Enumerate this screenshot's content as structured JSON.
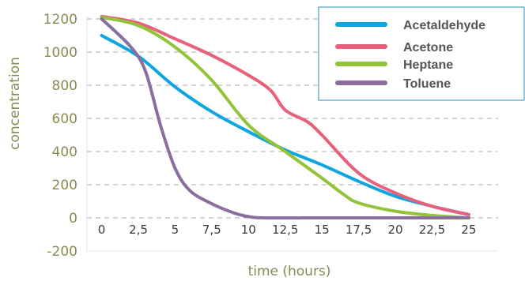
{
  "chart_data": {
    "type": "line",
    "xlabel": "time (hours)",
    "ylabel": "concentration",
    "xlim": [
      -1,
      27
    ],
    "ylim": [
      -200,
      1200
    ],
    "y_ticks": [
      "-200",
      "0",
      "200",
      "400",
      "600",
      "800",
      "1000",
      "1200"
    ],
    "x_ticks": [
      {
        "label": "0",
        "value": 0
      },
      {
        "label": "2,5",
        "value": 2.5
      },
      {
        "label": "5",
        "value": 5
      },
      {
        "label": "7,5",
        "value": 7.5
      },
      {
        "label": "10",
        "value": 10
      },
      {
        "label": "12,5",
        "value": 12.5
      },
      {
        "label": "15",
        "value": 15
      },
      {
        "label": "17,5",
        "value": 17.5
      },
      {
        "label": "20",
        "value": 20
      },
      {
        "label": "22,5",
        "value": 22.5
      },
      {
        "label": "25",
        "value": 25
      }
    ],
    "grid": true,
    "legend_position": "top-right",
    "series": [
      {
        "name": "Acetaldehyde",
        "color": "#0ea5e0",
        "points": [
          [
            0,
            1100
          ],
          [
            2.5,
            975
          ],
          [
            5,
            790
          ],
          [
            7.5,
            640
          ],
          [
            10,
            520
          ],
          [
            12.5,
            410
          ],
          [
            15,
            320
          ],
          [
            17.5,
            220
          ],
          [
            20,
            130
          ],
          [
            22.5,
            70
          ],
          [
            25,
            20
          ]
        ]
      },
      {
        "name": "Acetone",
        "color": "#e8607a",
        "points": [
          [
            0,
            1215
          ],
          [
            2.5,
            1175
          ],
          [
            5,
            1080
          ],
          [
            7.5,
            980
          ],
          [
            10,
            860
          ],
          [
            11.5,
            770
          ],
          [
            12.5,
            650
          ],
          [
            14,
            580
          ],
          [
            15,
            500
          ],
          [
            17.5,
            270
          ],
          [
            20,
            150
          ],
          [
            22.5,
            70
          ],
          [
            25,
            20
          ]
        ]
      },
      {
        "name": "Heptane",
        "color": "#92c43a",
        "points": [
          [
            0,
            1210
          ],
          [
            2.5,
            1160
          ],
          [
            5,
            1030
          ],
          [
            7.5,
            830
          ],
          [
            10,
            560
          ],
          [
            12.5,
            400
          ],
          [
            15,
            240
          ],
          [
            16.5,
            140
          ],
          [
            17.5,
            90
          ],
          [
            20,
            40
          ],
          [
            22.5,
            15
          ],
          [
            25,
            0
          ]
        ]
      },
      {
        "name": "Toluene",
        "color": "#8a6f9e",
        "points": [
          [
            0,
            1200
          ],
          [
            2,
            1030
          ],
          [
            3,
            880
          ],
          [
            4,
            560
          ],
          [
            5,
            300
          ],
          [
            6,
            165
          ],
          [
            7.5,
            85
          ],
          [
            9,
            30
          ],
          [
            10,
            8
          ],
          [
            11,
            0
          ],
          [
            15,
            0
          ],
          [
            20,
            0
          ],
          [
            25,
            0
          ]
        ]
      }
    ]
  }
}
